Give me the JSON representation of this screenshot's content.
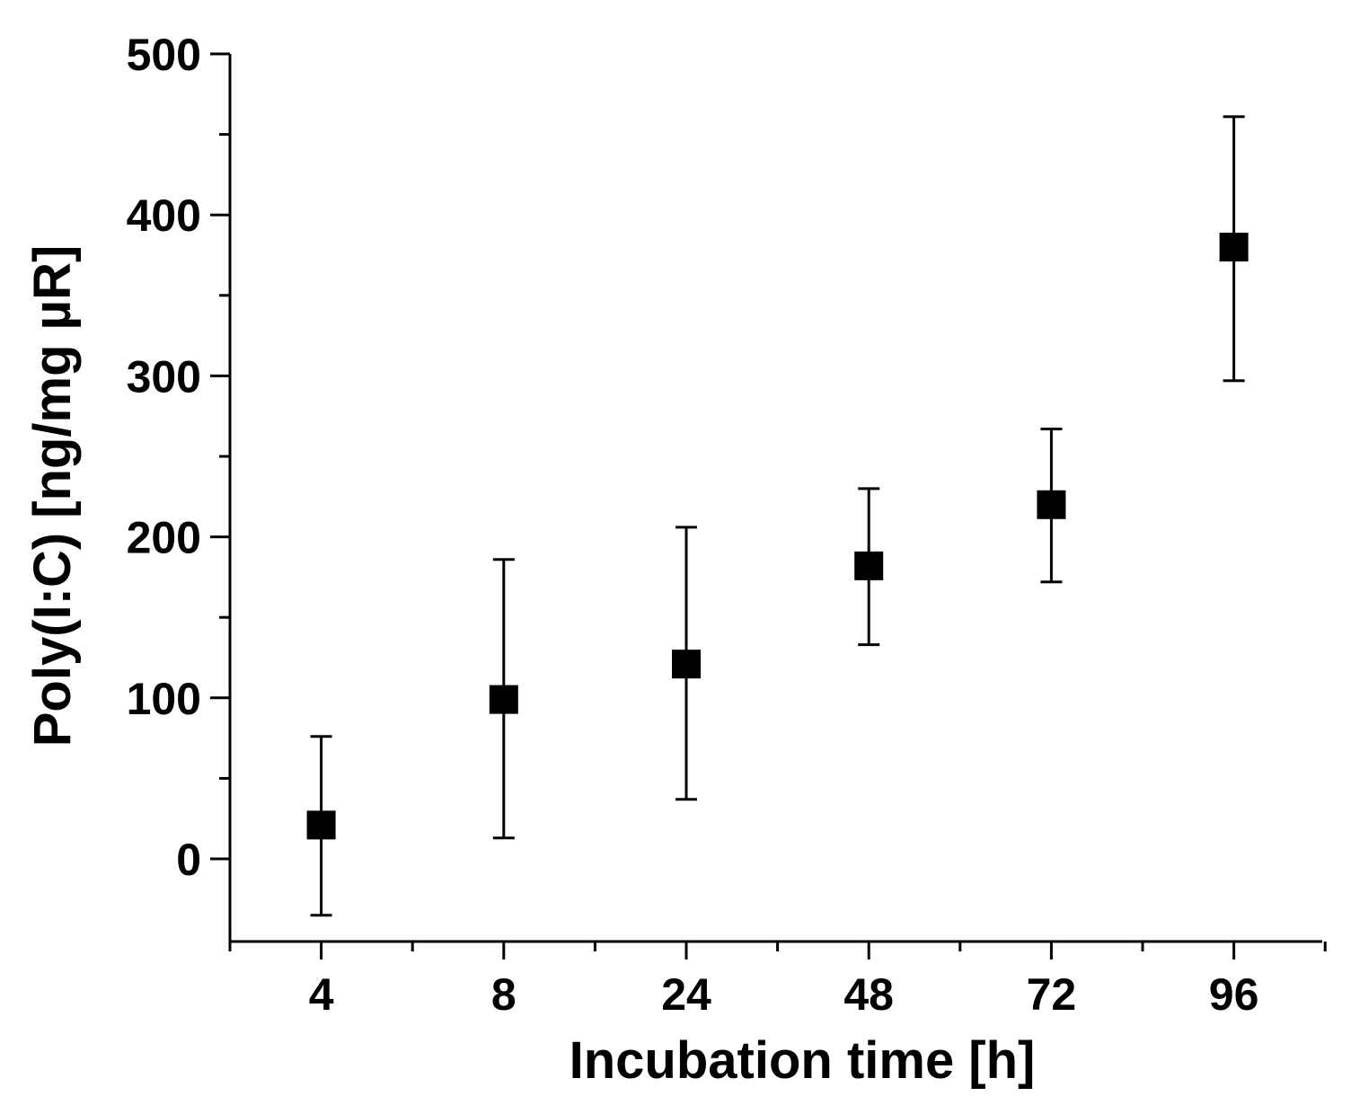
{
  "chart_data": {
    "type": "scatter",
    "title": "",
    "xlabel": "Incubation time [h]",
    "ylabel": "Poly(I:C)  [ng/mg µR]",
    "categories": [
      "4",
      "8",
      "24",
      "48",
      "72",
      "96"
    ],
    "series": [
      {
        "name": "Poly(I:C)",
        "marker": "square",
        "color": "#000000",
        "values": [
          21,
          99,
          121,
          182,
          220,
          380
        ],
        "error_upper": [
          76,
          186,
          206,
          230,
          267,
          461
        ],
        "error_lower": [
          -35,
          13,
          37,
          133,
          172,
          297
        ]
      }
    ],
    "ylim": [
      -50,
      500
    ],
    "yticks": [
      0,
      100,
      200,
      300,
      400,
      500
    ],
    "grid": false,
    "legend": "none"
  }
}
